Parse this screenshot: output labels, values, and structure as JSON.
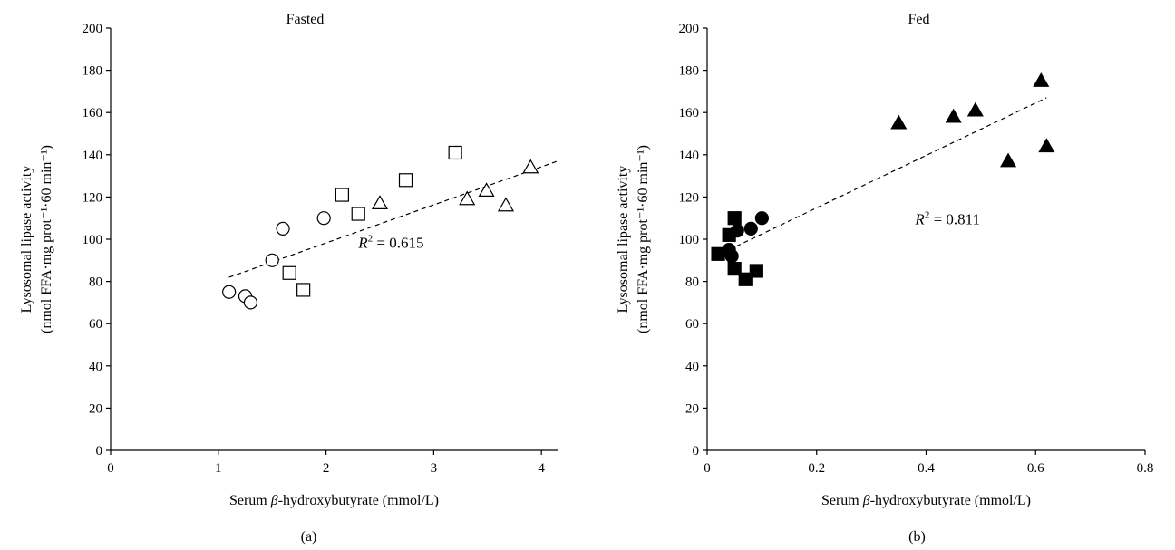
{
  "chart_data": [
    {
      "type": "scatter",
      "panel": "(a)",
      "title": "Fasted",
      "xlabel": "Serum β-hydroxybutyrate (mmol/L)",
      "ylabel_line1": "Lysosomal lipase activity",
      "ylabel_line2": "(nmol FFA·mg prot⁻¹·60 min⁻¹)",
      "xlim": [
        0,
        4.15
      ],
      "ylim": [
        0,
        200
      ],
      "xticks": [
        0,
        1,
        2,
        3,
        4
      ],
      "yticks": [
        0,
        20,
        40,
        60,
        80,
        100,
        120,
        140,
        160,
        180,
        200
      ],
      "grid": false,
      "annotation": {
        "r2_label": "R",
        "r2_sup": "2",
        "r2_text": " = 0.615",
        "x": 2.3,
        "y": 96
      },
      "trendline": {
        "x": [
          1.1,
          4.15
        ],
        "y": [
          82,
          137
        ]
      },
      "series": [
        {
          "marker": "circle-open",
          "x": [
            1.1,
            1.25,
            1.3,
            1.5,
            1.6,
            1.98
          ],
          "y": [
            75,
            73,
            70,
            90,
            105,
            110
          ]
        },
        {
          "marker": "square-open",
          "x": [
            1.66,
            1.79,
            2.15,
            2.3,
            2.74,
            3.2
          ],
          "y": [
            84,
            76,
            121,
            112,
            128,
            141
          ]
        },
        {
          "marker": "triangle-open",
          "x": [
            2.5,
            3.31,
            3.49,
            3.67,
            3.9
          ],
          "y": [
            117,
            119,
            123,
            116,
            134
          ]
        }
      ]
    },
    {
      "type": "scatter",
      "panel": "(b)",
      "title": "Fed",
      "xlabel": "Serum β-hydroxybutyrate (mmol/L)",
      "ylabel_line1": "Lysosomal lipase activity",
      "ylabel_line2": "(nmol FFA·mg prot⁻¹·60 min⁻¹)",
      "xlim": [
        0,
        0.8
      ],
      "ylim": [
        0,
        200
      ],
      "xticks": [
        0,
        0.2,
        0.4,
        0.6,
        0.8
      ],
      "yticks": [
        0,
        20,
        40,
        60,
        80,
        100,
        120,
        140,
        160,
        180,
        200
      ],
      "grid": false,
      "annotation": {
        "r2_label": "R",
        "r2_sup": "2",
        "r2_text": " = 0.811",
        "x": 0.38,
        "y": 107
      },
      "trendline": {
        "x": [
          0.04,
          0.62
        ],
        "y": [
          95,
          167
        ]
      },
      "series": [
        {
          "marker": "circle-filled",
          "x": [
            0.04,
            0.045,
            0.055,
            0.08,
            0.1
          ],
          "y": [
            95,
            92,
            104,
            105,
            110
          ]
        },
        {
          "marker": "square-filled",
          "x": [
            0.02,
            0.04,
            0.05,
            0.05,
            0.07,
            0.09
          ],
          "y": [
            93,
            102,
            110,
            86,
            81,
            85
          ]
        },
        {
          "marker": "triangle-filled",
          "x": [
            0.35,
            0.45,
            0.49,
            0.55,
            0.61,
            0.62
          ],
          "y": [
            155,
            158,
            161,
            137,
            175,
            144
          ]
        }
      ]
    }
  ]
}
